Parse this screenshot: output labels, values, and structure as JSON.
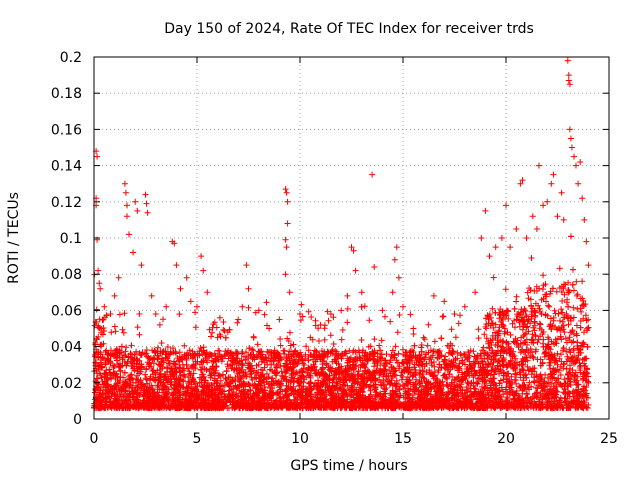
{
  "chart_data": {
    "type": "scatter",
    "title": "Day 150 of 2024, Rate Of TEC Index for receiver trds",
    "xlabel": "GPS time / hours",
    "ylabel": "ROTI / TECUs",
    "xlim": [
      0,
      25
    ],
    "ylim": [
      0,
      0.2
    ],
    "x_ticks": [
      0,
      5,
      10,
      15,
      20,
      25
    ],
    "x_tick_labels": [
      "0",
      "5",
      "10",
      "15",
      "20",
      "25"
    ],
    "y_ticks": [
      0,
      0.02,
      0.04,
      0.06,
      0.08,
      0.1,
      0.12,
      0.14,
      0.16,
      0.18,
      0.2
    ],
    "y_tick_labels": [
      "0",
      "0.02",
      "0.04",
      "0.06",
      "0.08",
      "0.1",
      "0.12",
      "0.14",
      "0.16",
      "0.18",
      "0.2"
    ],
    "grid": true,
    "legend": "none",
    "marker": "+",
    "color": "#ff0000",
    "series": [
      {
        "values_note_x": "hours",
        "points": [
          [
            0.1,
            0.148
          ],
          [
            0.15,
            0.145
          ],
          [
            0.1,
            0.122
          ],
          [
            0.1,
            0.118
          ],
          [
            0.15,
            0.099
          ],
          [
            0.2,
            0.082
          ],
          [
            0.25,
            0.075
          ],
          [
            0.3,
            0.072
          ],
          [
            0.5,
            0.062
          ],
          [
            0.8,
            0.058
          ],
          [
            1.0,
            0.068
          ],
          [
            1.2,
            0.078
          ],
          [
            1.5,
            0.13
          ],
          [
            1.55,
            0.125
          ],
          [
            1.6,
            0.118
          ],
          [
            1.6,
            0.112
          ],
          [
            1.7,
            0.102
          ],
          [
            1.9,
            0.092
          ],
          [
            2.0,
            0.12
          ],
          [
            2.1,
            0.115
          ],
          [
            2.3,
            0.085
          ],
          [
            2.5,
            0.124
          ],
          [
            2.55,
            0.119
          ],
          [
            2.6,
            0.114
          ],
          [
            2.8,
            0.068
          ],
          [
            3.0,
            0.058
          ],
          [
            3.2,
            0.052
          ],
          [
            3.5,
            0.062
          ],
          [
            3.8,
            0.098
          ],
          [
            3.9,
            0.097
          ],
          [
            4.0,
            0.085
          ],
          [
            4.2,
            0.072
          ],
          [
            4.5,
            0.078
          ],
          [
            4.7,
            0.065
          ],
          [
            5.0,
            0.062
          ],
          [
            5.2,
            0.09
          ],
          [
            5.3,
            0.082
          ],
          [
            5.5,
            0.07
          ],
          [
            6.0,
            0.045
          ],
          [
            6.5,
            0.048
          ],
          [
            7.0,
            0.055
          ],
          [
            7.2,
            0.062
          ],
          [
            7.4,
            0.085
          ],
          [
            7.5,
            0.072
          ],
          [
            8.0,
            0.06
          ],
          [
            8.5,
            0.05
          ],
          [
            9.0,
            0.055
          ],
          [
            9.3,
            0.127
          ],
          [
            9.35,
            0.125
          ],
          [
            9.4,
            0.12
          ],
          [
            9.4,
            0.108
          ],
          [
            9.3,
            0.099
          ],
          [
            9.35,
            0.095
          ],
          [
            9.3,
            0.08
          ],
          [
            9.5,
            0.07
          ],
          [
            10.0,
            0.058
          ],
          [
            10.5,
            0.045
          ],
          [
            11.0,
            0.052
          ],
          [
            11.5,
            0.058
          ],
          [
            12.0,
            0.06
          ],
          [
            12.3,
            0.068
          ],
          [
            12.5,
            0.095
          ],
          [
            12.6,
            0.093
          ],
          [
            12.7,
            0.082
          ],
          [
            13.0,
            0.07
          ],
          [
            13.5,
            0.135
          ],
          [
            13.6,
            0.084
          ],
          [
            14.0,
            0.06
          ],
          [
            14.5,
            0.07
          ],
          [
            14.6,
            0.088
          ],
          [
            14.7,
            0.095
          ],
          [
            14.8,
            0.078
          ],
          [
            15.0,
            0.062
          ],
          [
            15.5,
            0.05
          ],
          [
            16.0,
            0.045
          ],
          [
            16.5,
            0.068
          ],
          [
            17.0,
            0.065
          ],
          [
            17.5,
            0.058
          ],
          [
            18.0,
            0.062
          ],
          [
            18.5,
            0.07
          ],
          [
            18.8,
            0.1
          ],
          [
            19.0,
            0.115
          ],
          [
            19.2,
            0.09
          ],
          [
            19.5,
            0.095
          ],
          [
            19.8,
            0.1
          ],
          [
            20.0,
            0.118
          ],
          [
            20.2,
            0.095
          ],
          [
            20.5,
            0.105
          ],
          [
            20.7,
            0.13
          ],
          [
            20.8,
            0.132
          ],
          [
            21.0,
            0.1
          ],
          [
            21.3,
            0.112
          ],
          [
            21.5,
            0.105
          ],
          [
            21.6,
            0.14
          ],
          [
            21.8,
            0.118
          ],
          [
            22.0,
            0.12
          ],
          [
            22.2,
            0.13
          ],
          [
            22.3,
            0.135
          ],
          [
            22.5,
            0.112
          ],
          [
            22.7,
            0.125
          ],
          [
            22.8,
            0.11
          ],
          [
            23.0,
            0.198
          ],
          [
            23.05,
            0.19
          ],
          [
            23.05,
            0.187
          ],
          [
            23.1,
            0.185
          ],
          [
            23.1,
            0.16
          ],
          [
            23.15,
            0.155
          ],
          [
            23.2,
            0.15
          ],
          [
            23.3,
            0.145
          ],
          [
            23.4,
            0.14
          ],
          [
            23.5,
            0.13
          ],
          [
            23.6,
            0.142
          ],
          [
            23.7,
            0.122
          ],
          [
            23.8,
            0.11
          ],
          [
            23.9,
            0.098
          ],
          [
            24.0,
            0.085
          ]
        ]
      }
    ],
    "density_profile_note": "Dense band of points between ~0.005 and ~0.05 across 0-24 h, denser and higher after ~19 h"
  }
}
